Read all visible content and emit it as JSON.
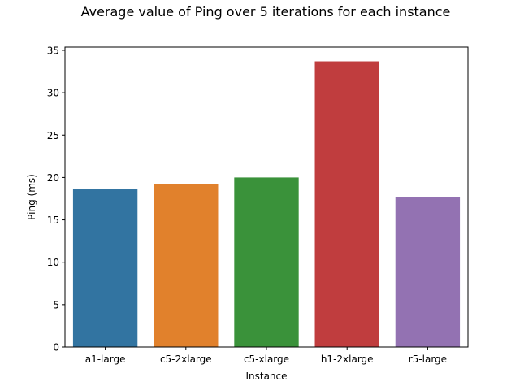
{
  "chart_data": {
    "type": "bar",
    "title": "Average value of Ping over 5 iterations for each instance",
    "xlabel": "Instance",
    "ylabel": "Ping (ms)",
    "categories": [
      "a1-large",
      "c5-2xlarge",
      "c5-xlarge",
      "h1-2xlarge",
      "r5-large"
    ],
    "values": [
      18.6,
      19.2,
      20.0,
      33.7,
      17.7
    ],
    "colors": [
      "#3274a1",
      "#e1812c",
      "#3a923a",
      "#c03d3e",
      "#9372b2"
    ],
    "yticks": [
      0,
      5,
      10,
      15,
      20,
      25,
      30,
      35
    ],
    "ylim": [
      0,
      35.38
    ],
    "grid": false,
    "legend": "none"
  }
}
